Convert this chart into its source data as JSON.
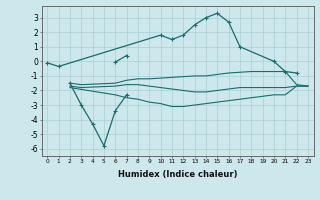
{
  "xlabel": "Humidex (Indice chaleur)",
  "color": "#1a6b6b",
  "bg_color": "#cce8ed",
  "grid_color": "#aacdd4",
  "ylim": [
    -6.5,
    3.8
  ],
  "xlim": [
    -0.5,
    23.5
  ],
  "yticks": [
    -6,
    -5,
    -4,
    -3,
    -2,
    -1,
    0,
    1,
    2,
    3
  ],
  "xticks": [
    0,
    1,
    2,
    3,
    4,
    5,
    6,
    7,
    8,
    9,
    10,
    11,
    12,
    13,
    14,
    15,
    16,
    17,
    18,
    19,
    20,
    21,
    22,
    23
  ],
  "line1_x": [
    0,
    1,
    10,
    11,
    12,
    13,
    14,
    15,
    16,
    17,
    20,
    21,
    22
  ],
  "line1_y": [
    -0.1,
    -0.35,
    1.8,
    1.5,
    1.8,
    2.5,
    3.0,
    3.3,
    2.7,
    1.0,
    0.0,
    -0.7,
    -0.8
  ],
  "line2_x": [
    6,
    7
  ],
  "line2_y": [
    -0.05,
    0.4
  ],
  "line3_x": [
    2,
    3,
    4,
    5,
    6,
    7
  ],
  "line3_y": [
    -1.5,
    -3.0,
    -4.3,
    -5.8,
    -3.4,
    -2.3
  ],
  "flat1_x": [
    2,
    3,
    6,
    7,
    8,
    9,
    10,
    11,
    12,
    13,
    14,
    15,
    16,
    17,
    18,
    19,
    20,
    21,
    22,
    23
  ],
  "flat1_y": [
    -1.5,
    -1.6,
    -1.5,
    -1.3,
    -1.2,
    -1.2,
    -1.15,
    -1.1,
    -1.05,
    -1.0,
    -1.0,
    -0.9,
    -0.8,
    -0.75,
    -0.7,
    -0.7,
    -0.7,
    -0.7,
    -1.6,
    -1.7
  ],
  "flat2_x": [
    2,
    3,
    6,
    7,
    8,
    9,
    10,
    11,
    12,
    13,
    14,
    15,
    16,
    17,
    18,
    19,
    20,
    21,
    22,
    23
  ],
  "flat2_y": [
    -1.7,
    -1.8,
    -1.7,
    -1.6,
    -1.6,
    -1.7,
    -1.8,
    -1.9,
    -2.0,
    -2.1,
    -2.1,
    -2.0,
    -1.9,
    -1.8,
    -1.8,
    -1.8,
    -1.8,
    -1.8,
    -1.7,
    -1.7
  ],
  "flat3_x": [
    2,
    6,
    7,
    8,
    9,
    10,
    11,
    12,
    13,
    14,
    15,
    16,
    17,
    18,
    19,
    20,
    21,
    22,
    23
  ],
  "flat3_y": [
    -1.8,
    -2.3,
    -2.5,
    -2.6,
    -2.8,
    -2.9,
    -3.1,
    -3.1,
    -3.0,
    -2.9,
    -2.8,
    -2.7,
    -2.6,
    -2.5,
    -2.4,
    -2.3,
    -2.3,
    -1.7,
    -1.7
  ]
}
